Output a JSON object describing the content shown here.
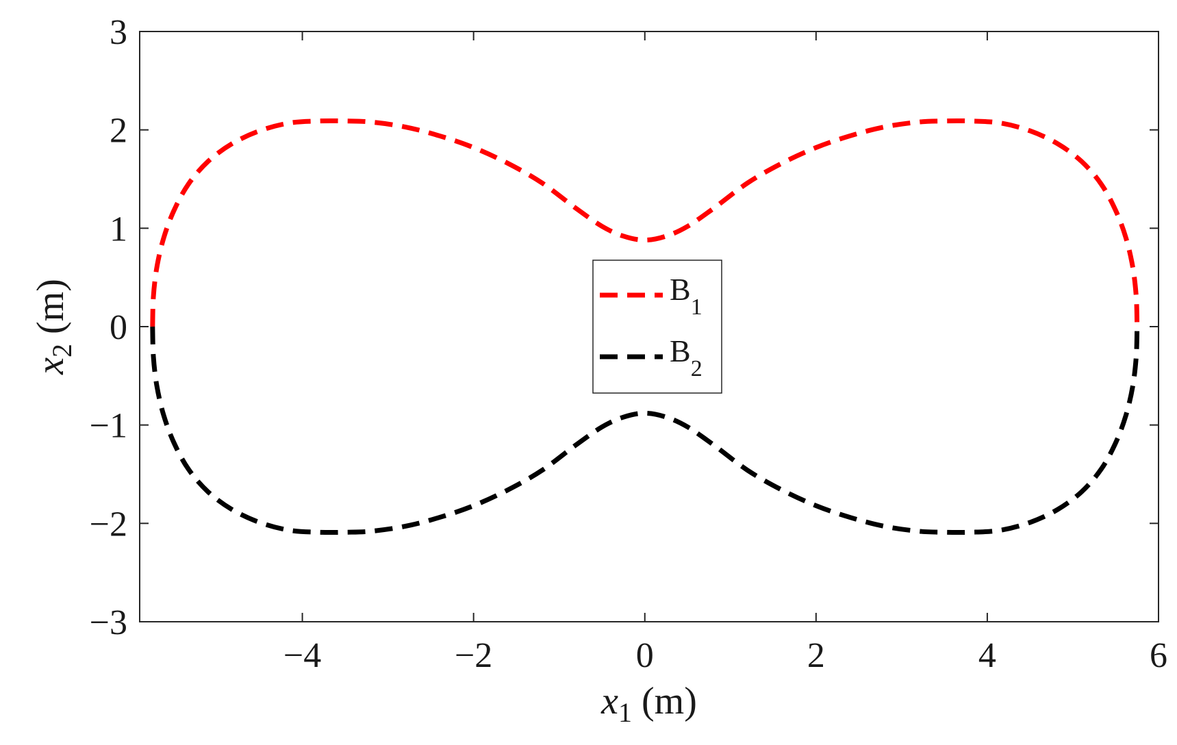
{
  "chart_data": {
    "type": "line",
    "xlabel": {
      "var": "x",
      "sub": "1",
      "unit": "(m)"
    },
    "ylabel": {
      "var": "x",
      "sub": "2",
      "unit": "(m)"
    },
    "xlim": [
      -5.9,
      6
    ],
    "ylim": [
      -3,
      3
    ],
    "xticks": [
      -4,
      -2,
      0,
      2,
      4,
      6
    ],
    "yticks": [
      -3,
      -2,
      -1,
      0,
      1,
      2,
      3
    ],
    "xtick_labels": [
      "−4",
      "−2",
      "0",
      "2",
      "4",
      "6"
    ],
    "ytick_labels": [
      "−3",
      "−2",
      "−1",
      "0",
      "1",
      "2",
      "3"
    ],
    "grid": false,
    "box": true,
    "legend_position": "center",
    "series": [
      {
        "name": "B",
        "name_sub": "1",
        "color": "#ff0000",
        "style": "dashed",
        "x": [
          -5.75,
          -5.74,
          -5.7,
          -5.62,
          -5.5,
          -5.33,
          -5.1,
          -4.82,
          -4.5,
          -4.15,
          -3.8,
          -3.5,
          -3.2,
          -2.8,
          -2.4,
          -2.0,
          -1.6,
          -1.2,
          -0.8,
          -0.5,
          -0.25,
          0.0,
          0.25,
          0.5,
          0.8,
          1.2,
          1.6,
          2.0,
          2.4,
          2.8,
          3.2,
          3.5,
          3.8,
          4.15,
          4.5,
          4.82,
          5.1,
          5.33,
          5.5,
          5.62,
          5.7,
          5.74,
          5.75
        ],
        "y": [
          0.0,
          0.3,
          0.6,
          0.9,
          1.18,
          1.45,
          1.68,
          1.86,
          1.99,
          2.07,
          2.09,
          2.09,
          2.08,
          2.03,
          1.94,
          1.82,
          1.66,
          1.46,
          1.2,
          1.02,
          0.92,
          0.88,
          0.92,
          1.02,
          1.2,
          1.46,
          1.66,
          1.82,
          1.94,
          2.03,
          2.08,
          2.09,
          2.09,
          2.07,
          1.99,
          1.86,
          1.68,
          1.45,
          1.18,
          0.9,
          0.6,
          0.3,
          0.0
        ]
      },
      {
        "name": "B",
        "name_sub": "2",
        "color": "#000000",
        "style": "dashed",
        "x": [
          -5.75,
          -5.74,
          -5.7,
          -5.62,
          -5.5,
          -5.33,
          -5.1,
          -4.82,
          -4.5,
          -4.15,
          -3.8,
          -3.5,
          -3.2,
          -2.8,
          -2.4,
          -2.0,
          -1.6,
          -1.2,
          -0.8,
          -0.5,
          -0.25,
          0.0,
          0.25,
          0.5,
          0.8,
          1.2,
          1.6,
          2.0,
          2.4,
          2.8,
          3.2,
          3.5,
          3.8,
          4.15,
          4.5,
          4.82,
          5.1,
          5.33,
          5.5,
          5.62,
          5.7,
          5.74,
          5.75
        ],
        "y": [
          0.0,
          -0.3,
          -0.6,
          -0.9,
          -1.18,
          -1.45,
          -1.68,
          -1.86,
          -1.99,
          -2.07,
          -2.09,
          -2.09,
          -2.08,
          -2.03,
          -1.94,
          -1.82,
          -1.66,
          -1.46,
          -1.2,
          -1.02,
          -0.92,
          -0.88,
          -0.92,
          -1.02,
          -1.2,
          -1.46,
          -1.66,
          -1.82,
          -1.94,
          -2.03,
          -2.08,
          -2.09,
          -2.09,
          -2.07,
          -1.99,
          -1.86,
          -1.68,
          -1.45,
          -1.18,
          -0.9,
          -0.6,
          -0.3,
          0.0
        ]
      }
    ]
  }
}
